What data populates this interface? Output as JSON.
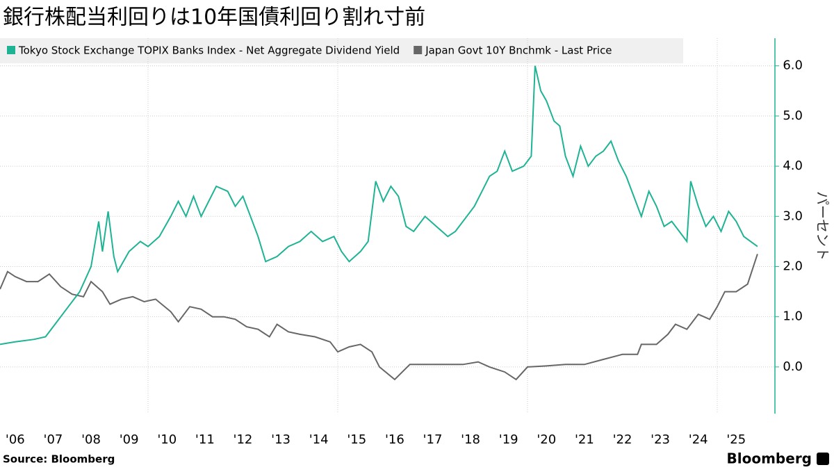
{
  "chart_data": {
    "type": "line",
    "title": "銀行株配当利回りは10年国債利回り割れ寸前",
    "y_label": "パーセント",
    "source": "Source:  Bloomberg",
    "brand": "Bloomberg",
    "grid": true,
    "xlim": [
      2006.1,
      2026.52
    ],
    "ylim": [
      -0.93,
      6.55
    ],
    "yticks": [
      {
        "value": 0,
        "label": "0.0"
      },
      {
        "value": 1,
        "label": "1.0"
      },
      {
        "value": 2,
        "label": "2.0"
      },
      {
        "value": 3,
        "label": "3.0"
      },
      {
        "value": 4,
        "label": "4.0"
      },
      {
        "value": 5,
        "label": "5.0"
      },
      {
        "value": 6,
        "label": "6.0"
      }
    ],
    "xticks": [
      {
        "value": 2006.5,
        "label": "'06"
      },
      {
        "value": 2007.5,
        "label": "'07"
      },
      {
        "value": 2008.5,
        "label": "'08"
      },
      {
        "value": 2009.5,
        "label": "'09"
      },
      {
        "value": 2010.5,
        "label": "'10"
      },
      {
        "value": 2011.5,
        "label": "'11"
      },
      {
        "value": 2012.5,
        "label": "'12"
      },
      {
        "value": 2013.5,
        "label": "'13"
      },
      {
        "value": 2014.5,
        "label": "'14"
      },
      {
        "value": 2015.5,
        "label": "'15"
      },
      {
        "value": 2016.5,
        "label": "'16"
      },
      {
        "value": 2017.5,
        "label": "'17"
      },
      {
        "value": 2018.5,
        "label": "'18"
      },
      {
        "value": 2019.5,
        "label": "'19"
      },
      {
        "value": 2020.5,
        "label": "'20"
      },
      {
        "value": 2021.5,
        "label": "'21"
      },
      {
        "value": 2022.5,
        "label": "'22"
      },
      {
        "value": 2023.5,
        "label": "'23"
      },
      {
        "value": 2024.5,
        "label": "'24"
      },
      {
        "value": 2025.5,
        "label": "'25"
      }
    ],
    "xgrid": [
      2010,
      2015,
      2020,
      2025
    ],
    "series": [
      {
        "name": "Tokyo Stock Exchange TOPIX Banks Index - Net Aggregate Dividend Yield",
        "color": "#1db394",
        "x": [
          2006.1,
          2006.5,
          2007.0,
          2007.3,
          2007.6,
          2007.9,
          2008.2,
          2008.5,
          2008.7,
          2008.8,
          2008.95,
          2009.1,
          2009.2,
          2009.5,
          2009.8,
          2010.0,
          2010.3,
          2010.6,
          2010.8,
          2011.0,
          2011.2,
          2011.4,
          2011.6,
          2011.8,
          2012.1,
          2012.3,
          2012.5,
          2012.7,
          2012.9,
          2013.1,
          2013.4,
          2013.7,
          2014.0,
          2014.3,
          2014.6,
          2014.9,
          2015.1,
          2015.3,
          2015.6,
          2015.8,
          2016.0,
          2016.2,
          2016.4,
          2016.6,
          2016.8,
          2017.0,
          2017.3,
          2017.6,
          2017.9,
          2018.1,
          2018.4,
          2018.6,
          2018.8,
          2019.0,
          2019.2,
          2019.4,
          2019.6,
          2019.9,
          2020.1,
          2020.2,
          2020.35,
          2020.5,
          2020.7,
          2020.85,
          2021.0,
          2021.2,
          2021.4,
          2021.6,
          2021.8,
          2022.0,
          2022.2,
          2022.4,
          2022.6,
          2022.8,
          2023.0,
          2023.2,
          2023.4,
          2023.6,
          2023.8,
          2024.0,
          2024.2,
          2024.3,
          2024.5,
          2024.7,
          2024.9,
          2025.1,
          2025.3,
          2025.5,
          2025.7,
          2026.06
        ],
        "values": [
          0.45,
          0.5,
          0.55,
          0.6,
          0.9,
          1.2,
          1.5,
          2.0,
          2.9,
          2.3,
          3.1,
          2.2,
          1.9,
          2.3,
          2.5,
          2.4,
          2.6,
          3.0,
          3.3,
          3.0,
          3.4,
          3.0,
          3.3,
          3.6,
          3.5,
          3.2,
          3.4,
          3.0,
          2.6,
          2.1,
          2.2,
          2.4,
          2.5,
          2.7,
          2.5,
          2.6,
          2.3,
          2.1,
          2.3,
          2.5,
          3.7,
          3.3,
          3.6,
          3.4,
          2.8,
          2.7,
          3.0,
          2.8,
          2.6,
          2.7,
          3.0,
          3.2,
          3.5,
          3.8,
          3.9,
          4.3,
          3.9,
          4.0,
          4.2,
          6.0,
          5.5,
          5.3,
          4.9,
          4.8,
          4.2,
          3.8,
          4.4,
          4.0,
          4.2,
          4.3,
          4.5,
          4.1,
          3.8,
          3.4,
          3.0,
          3.5,
          3.2,
          2.8,
          2.9,
          2.7,
          2.5,
          3.7,
          3.2,
          2.8,
          3.0,
          2.7,
          3.1,
          2.9,
          2.6,
          2.4
        ]
      },
      {
        "name": "Japan Govt 10Y Bnchmk - Last Price",
        "color": "#666666",
        "x": [
          2006.1,
          2006.3,
          2006.5,
          2006.8,
          2007.1,
          2007.4,
          2007.7,
          2008.0,
          2008.3,
          2008.5,
          2008.8,
          2009.0,
          2009.3,
          2009.6,
          2009.9,
          2010.2,
          2010.6,
          2010.8,
          2011.1,
          2011.4,
          2011.7,
          2012.0,
          2012.3,
          2012.6,
          2012.9,
          2013.2,
          2013.4,
          2013.7,
          2014.0,
          2014.4,
          2014.8,
          2015.0,
          2015.3,
          2015.6,
          2015.9,
          2016.1,
          2016.5,
          2016.9,
          2017.3,
          2017.8,
          2018.3,
          2018.7,
          2019.0,
          2019.4,
          2019.7,
          2020.0,
          2020.5,
          2021.0,
          2021.5,
          2022.0,
          2022.5,
          2022.9,
          2023.0,
          2023.4,
          2023.7,
          2023.9,
          2024.2,
          2024.5,
          2024.8,
          2025.0,
          2025.2,
          2025.5,
          2025.8,
          2026.06
        ],
        "values": [
          1.55,
          1.9,
          1.8,
          1.7,
          1.7,
          1.85,
          1.6,
          1.45,
          1.4,
          1.7,
          1.5,
          1.25,
          1.35,
          1.4,
          1.3,
          1.35,
          1.1,
          0.9,
          1.2,
          1.15,
          1.0,
          1.0,
          0.95,
          0.8,
          0.75,
          0.6,
          0.85,
          0.7,
          0.65,
          0.6,
          0.5,
          0.3,
          0.4,
          0.45,
          0.3,
          0.0,
          -0.25,
          0.05,
          0.05,
          0.05,
          0.05,
          0.1,
          0.0,
          -0.1,
          -0.25,
          0.0,
          0.02,
          0.05,
          0.05,
          0.15,
          0.25,
          0.25,
          0.45,
          0.45,
          0.65,
          0.85,
          0.75,
          1.05,
          0.95,
          1.2,
          1.5,
          1.5,
          1.65,
          2.25
        ]
      }
    ]
  }
}
